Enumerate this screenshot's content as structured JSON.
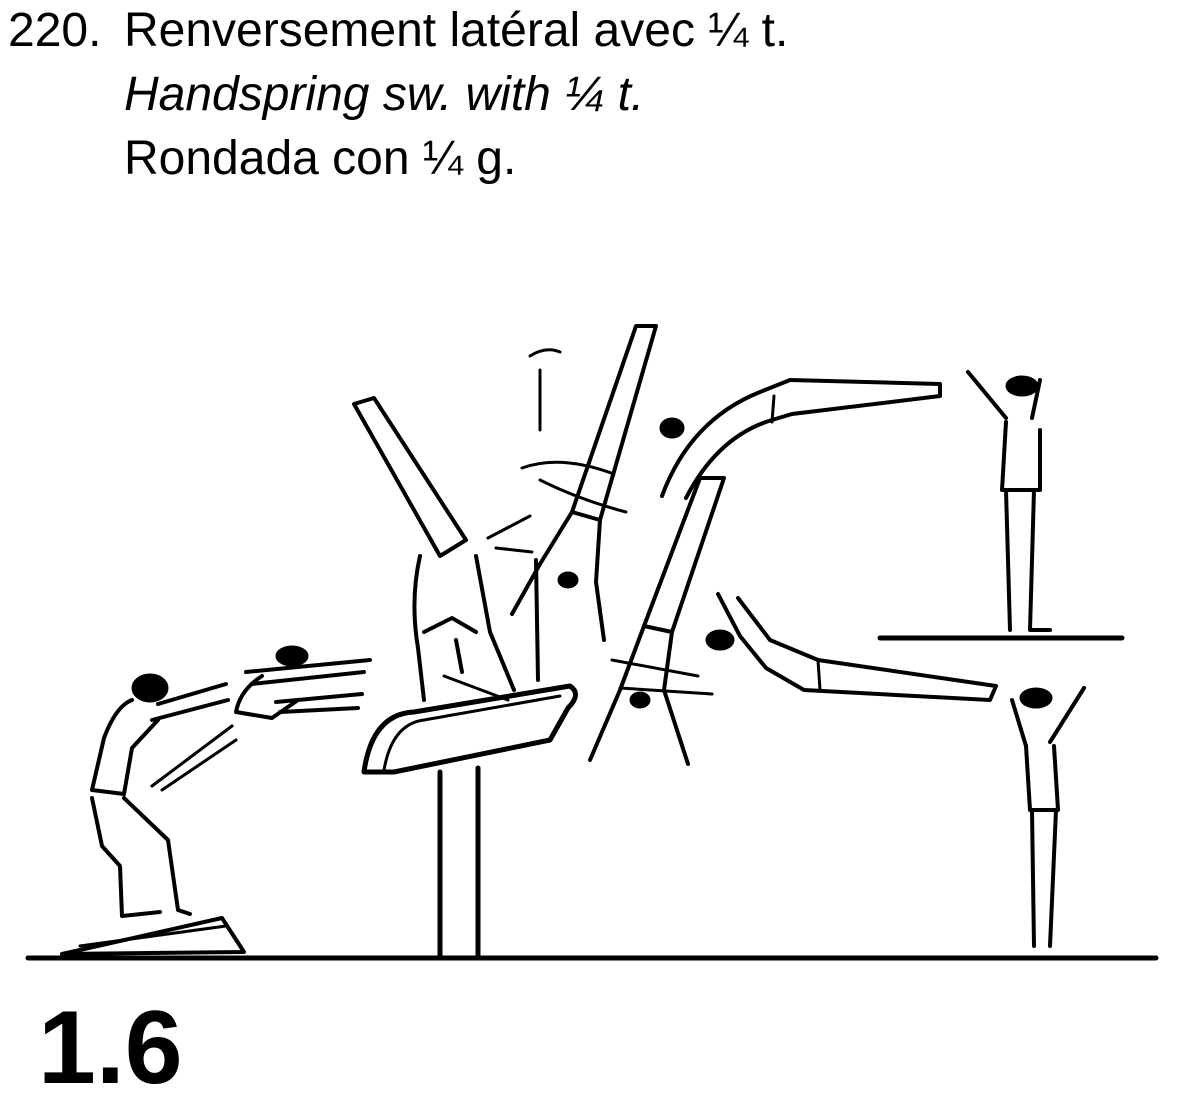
{
  "element": {
    "number": "220.",
    "name_fr": "Renversement latéral avec ¼ t.",
    "name_en": "Handspring sw. with ¼ t.",
    "name_es": "Rondada con ¼ g.",
    "value": "1.6"
  }
}
